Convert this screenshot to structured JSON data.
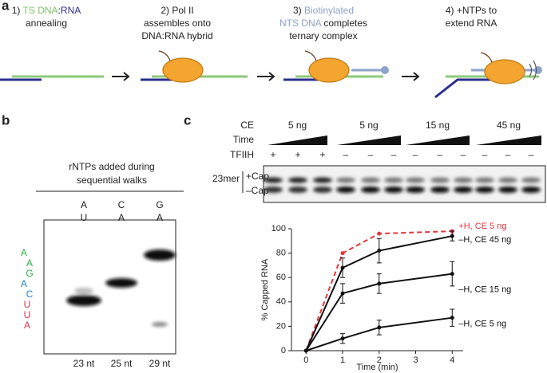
{
  "panel_a": {
    "label": "a",
    "step1": {
      "num": "1)",
      "ts": "TS DNA",
      "colon": ":",
      "rna": "RNA",
      "line2": "annealing"
    },
    "step2": [
      "2) Pol II",
      "assembles onto",
      "DNA:RNA hybrid"
    ],
    "step3": {
      "num": "3)",
      "bio": "Biotinylated",
      "nts": "NTS DNA",
      "completes": "completes",
      "line3": "ternary complex"
    },
    "step4": [
      "4) +NTPs to",
      "extend RNA"
    ]
  },
  "panel_b": {
    "label": "b",
    "header": [
      "rNTPs added during",
      "sequential walks"
    ],
    "lanes": [
      {
        "top": "A",
        "bottom": "U",
        "size": "23 nt"
      },
      {
        "top": "C",
        "bottom": "A",
        "size": "25 nt"
      },
      {
        "top": "G",
        "bottom": "A",
        "size": "29 nt"
      }
    ],
    "sequence": [
      "A",
      "A",
      "G",
      "A",
      "C",
      "U",
      "U",
      "A"
    ]
  },
  "panel_c": {
    "label": "c",
    "rows": {
      "ce": "CE",
      "time": "Time",
      "tfiih": "TFIIH"
    },
    "ce_groups": [
      "5 ng",
      "5 ng",
      "15 ng",
      "45 ng"
    ],
    "tfiih": [
      "+",
      "+",
      "+",
      "–",
      "–",
      "–",
      "–",
      "–",
      "–",
      "–",
      "–",
      "–"
    ],
    "gel": {
      "name": "23mer",
      "upper": "+Cap",
      "lower": "–Cap"
    }
  },
  "chart_data": {
    "type": "line",
    "xlabel": "Time (min)",
    "ylabel": "% Capped RNA",
    "x": [
      0,
      1,
      2,
      4
    ],
    "xlim": [
      -0.4,
      4.3
    ],
    "xticks": [
      0,
      1,
      2,
      3,
      4
    ],
    "ylim": [
      0,
      100
    ],
    "yticks": [
      0,
      20,
      40,
      60,
      80,
      100
    ],
    "series": [
      {
        "name": "+H, CE 5 ng",
        "color": "#e8343a",
        "dashed": true,
        "values": [
          0,
          80,
          96,
          98
        ]
      },
      {
        "name": "–H, CE 45 ng",
        "color": "#111111",
        "values": [
          0,
          68,
          82,
          94
        ],
        "errors": [
          null,
          8,
          10,
          4
        ]
      },
      {
        "name": "–H, CE 15 ng",
        "color": "#111111",
        "values": [
          0,
          47,
          55,
          63
        ],
        "errors": [
          null,
          8,
          8,
          10
        ]
      },
      {
        "name": "–H, CE 5 ng",
        "color": "#111111",
        "values": [
          0,
          10,
          19,
          27
        ],
        "errors": [
          null,
          4,
          6,
          7
        ]
      }
    ]
  }
}
